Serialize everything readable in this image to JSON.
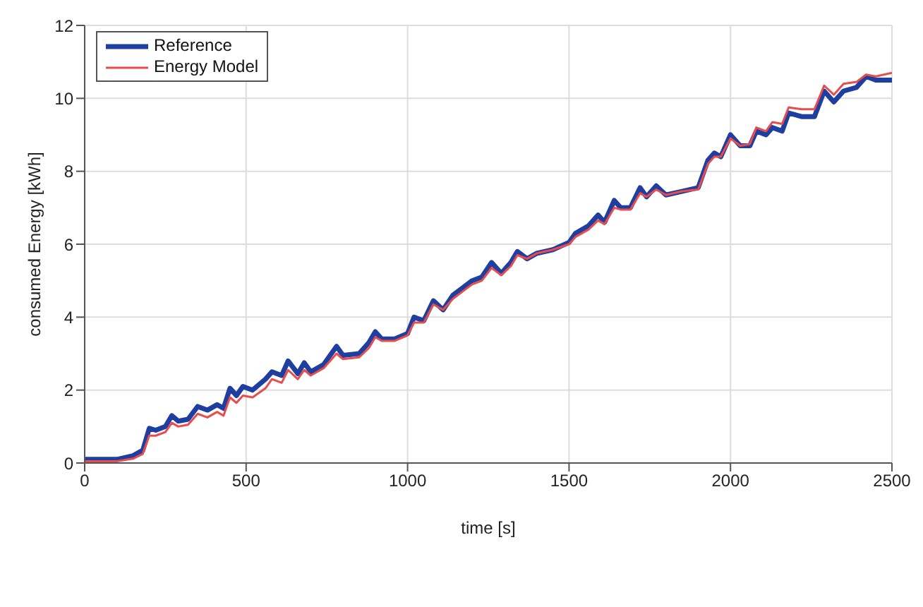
{
  "chart_data": {
    "type": "line",
    "xlabel": "time [s]",
    "ylabel": "consumed Energy [kWh]",
    "xlim": [
      0,
      2500
    ],
    "ylim": [
      0,
      12
    ],
    "xticks": [
      0,
      500,
      1000,
      1500,
      2000,
      2500
    ],
    "yticks": [
      0,
      2,
      4,
      6,
      8,
      10,
      12
    ],
    "grid": true,
    "legend": "top left",
    "marker": "none",
    "line_style": "solid",
    "x": [
      0,
      50,
      100,
      150,
      180,
      200,
      220,
      250,
      270,
      290,
      320,
      350,
      380,
      410,
      430,
      450,
      470,
      490,
      520,
      560,
      580,
      610,
      630,
      660,
      680,
      700,
      740,
      780,
      800,
      850,
      880,
      900,
      920,
      960,
      1000,
      1020,
      1050,
      1080,
      1110,
      1140,
      1170,
      1200,
      1230,
      1260,
      1290,
      1320,
      1340,
      1370,
      1400,
      1450,
      1500,
      1520,
      1560,
      1590,
      1610,
      1640,
      1660,
      1690,
      1720,
      1740,
      1770,
      1800,
      1850,
      1900,
      1930,
      1950,
      1970,
      2000,
      2030,
      2060,
      2080,
      2110,
      2130,
      2160,
      2180,
      2220,
      2260,
      2290,
      2320,
      2350,
      2390,
      2420,
      2450,
      2500
    ],
    "series": [
      {
        "name": "Reference",
        "color": "#1f3fa0",
        "values": [
          0.1,
          0.1,
          0.1,
          0.2,
          0.35,
          0.95,
          0.9,
          1.0,
          1.3,
          1.15,
          1.2,
          1.55,
          1.45,
          1.6,
          1.5,
          2.05,
          1.85,
          2.1,
          2.0,
          2.3,
          2.5,
          2.4,
          2.8,
          2.45,
          2.75,
          2.5,
          2.7,
          3.2,
          2.95,
          3.0,
          3.3,
          3.6,
          3.4,
          3.4,
          3.55,
          4.0,
          3.9,
          4.45,
          4.2,
          4.6,
          4.8,
          5.0,
          5.1,
          5.5,
          5.2,
          5.5,
          5.8,
          5.6,
          5.75,
          5.85,
          6.05,
          6.3,
          6.5,
          6.8,
          6.6,
          7.2,
          7.0,
          7.0,
          7.55,
          7.3,
          7.6,
          7.35,
          7.45,
          7.55,
          8.3,
          8.5,
          8.4,
          9.0,
          8.7,
          8.7,
          9.1,
          9.0,
          9.2,
          9.1,
          9.6,
          9.5,
          9.5,
          10.2,
          9.9,
          10.2,
          10.3,
          10.6,
          10.5,
          10.5
        ]
      },
      {
        "name": "Energy Model",
        "color": "#e84c4c",
        "values": [
          0.05,
          0.05,
          0.05,
          0.12,
          0.25,
          0.75,
          0.75,
          0.85,
          1.1,
          1.0,
          1.05,
          1.35,
          1.25,
          1.4,
          1.3,
          1.8,
          1.65,
          1.85,
          1.8,
          2.05,
          2.3,
          2.2,
          2.55,
          2.3,
          2.55,
          2.4,
          2.6,
          3.0,
          2.85,
          2.9,
          3.15,
          3.45,
          3.35,
          3.35,
          3.5,
          3.85,
          3.85,
          4.35,
          4.2,
          4.5,
          4.7,
          4.9,
          5.0,
          5.35,
          5.15,
          5.4,
          5.7,
          5.6,
          5.75,
          5.85,
          6.0,
          6.2,
          6.4,
          6.65,
          6.55,
          7.0,
          6.95,
          6.95,
          7.4,
          7.3,
          7.5,
          7.35,
          7.45,
          7.5,
          8.2,
          8.4,
          8.4,
          8.9,
          8.7,
          8.75,
          9.2,
          9.1,
          9.35,
          9.3,
          9.75,
          9.7,
          9.7,
          10.35,
          10.1,
          10.4,
          10.45,
          10.65,
          10.6,
          10.7
        ]
      }
    ]
  }
}
